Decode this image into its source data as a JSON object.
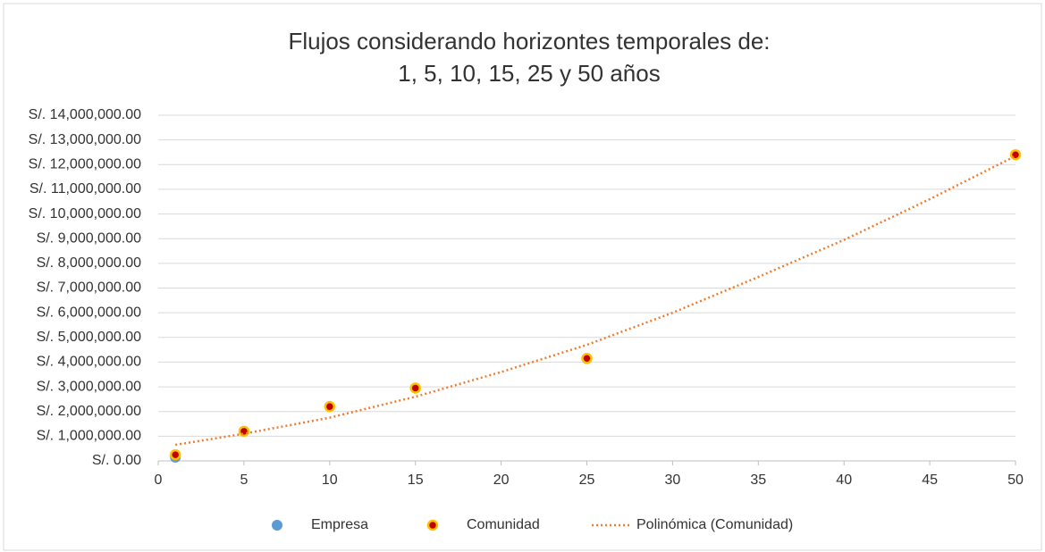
{
  "chart_data": {
    "type": "scatter",
    "title": [
      "Flujos considerando horizontes temporales de:",
      "1, 5, 10, 15, 25 y 50 años"
    ],
    "series": [
      {
        "name": "Empresa",
        "color": "#5b9bd5",
        "x": [
          1
        ],
        "values": [
          150000
        ]
      },
      {
        "name": "Comunidad",
        "color": "#c00000",
        "edge": "#ffc000",
        "x": [
          1,
          5,
          10,
          15,
          25,
          50
        ],
        "values": [
          250000,
          1200000,
          2200000,
          2950000,
          4150000,
          12400000
        ]
      },
      {
        "name": "Polinómica (Comunidad)",
        "type": "line",
        "style": "dotted",
        "color": "#ed7d31",
        "x": [
          1,
          5,
          10,
          15,
          20,
          25,
          30,
          35,
          40,
          45,
          50
        ],
        "values": [
          650000,
          1100000,
          1750000,
          2600000,
          3600000,
          4700000,
          6000000,
          7450000,
          8950000,
          10600000,
          12350000
        ]
      }
    ],
    "xlim": [
      0,
      50
    ],
    "xticks": [
      0,
      5,
      10,
      15,
      20,
      25,
      30,
      35,
      40,
      45,
      50
    ],
    "ylim": [
      0,
      14000000
    ],
    "yticks": [
      {
        "value": 0,
        "label": "S/. 0.00"
      },
      {
        "value": 1000000,
        "label": "S/. 1,000,000.00"
      },
      {
        "value": 2000000,
        "label": "S/. 2,000,000.00"
      },
      {
        "value": 3000000,
        "label": "S/. 3,000,000.00"
      },
      {
        "value": 4000000,
        "label": "S/. 4,000,000.00"
      },
      {
        "value": 5000000,
        "label": "S/. 5,000,000.00"
      },
      {
        "value": 6000000,
        "label": "S/. 6,000,000.00"
      },
      {
        "value": 7000000,
        "label": "S/. 7,000,000.00"
      },
      {
        "value": 8000000,
        "label": "S/. 8,000,000.00"
      },
      {
        "value": 9000000,
        "label": "S/. 9,000,000.00"
      },
      {
        "value": 10000000,
        "label": "S/. 10,000,000.00"
      },
      {
        "value": 11000000,
        "label": "S/. 11,000,000.00"
      },
      {
        "value": 12000000,
        "label": "S/. 12,000,000.00"
      },
      {
        "value": 13000000,
        "label": "S/. 13,000,000.00"
      },
      {
        "value": 14000000,
        "label": "S/. 14,000,000.00"
      }
    ],
    "grid": true,
    "legend": "bottom"
  }
}
